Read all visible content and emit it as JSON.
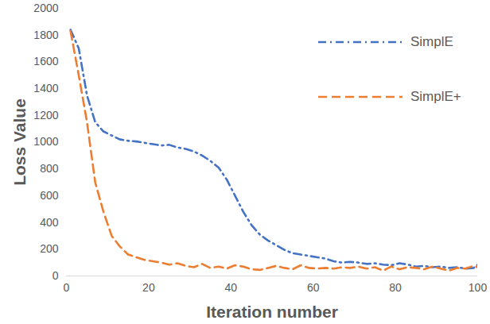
{
  "chart_data": {
    "type": "line",
    "x_label": "Iteration number",
    "y_label": "Loss Value",
    "x": [
      1,
      3,
      5,
      7,
      9,
      11,
      13,
      15,
      17,
      19,
      21,
      23,
      25,
      27,
      29,
      31,
      33,
      35,
      37,
      39,
      41,
      43,
      45,
      47,
      49,
      51,
      53,
      55,
      57,
      59,
      61,
      63,
      65,
      67,
      69,
      71,
      73,
      75,
      77,
      79,
      81,
      83,
      85,
      87,
      89,
      91,
      93,
      95,
      97,
      99,
      100
    ],
    "series": [
      {
        "name": "SimplE",
        "color": "#4472c4",
        "line_style": "dashdot",
        "marker": "none",
        "values": [
          1840,
          1700,
          1350,
          1150,
          1080,
          1050,
          1020,
          1010,
          1005,
          995,
          985,
          975,
          980,
          960,
          950,
          930,
          900,
          860,
          810,
          720,
          600,
          480,
          380,
          310,
          265,
          230,
          195,
          170,
          160,
          150,
          140,
          130,
          110,
          100,
          105,
          100,
          90,
          95,
          85,
          80,
          95,
          85,
          70,
          75,
          65,
          70,
          60,
          65,
          55,
          60,
          85
        ]
      },
      {
        "name": "SimplE+",
        "color": "#ed7d31",
        "line_style": "dashed",
        "marker": "none",
        "values": [
          1830,
          1500,
          1150,
          700,
          480,
          300,
          220,
          160,
          140,
          120,
          110,
          100,
          85,
          95,
          75,
          65,
          90,
          60,
          70,
          55,
          80,
          70,
          50,
          45,
          60,
          75,
          60,
          50,
          80,
          60,
          55,
          60,
          55,
          65,
          60,
          70,
          55,
          65,
          40,
          70,
          50,
          65,
          60,
          50,
          70,
          55,
          40,
          60,
          55,
          75,
          65
        ]
      }
    ],
    "xlim": [
      0,
      100
    ],
    "xticks": [
      0,
      20,
      40,
      60,
      80,
      100
    ],
    "ylim": [
      0,
      2000
    ],
    "yticks": [
      0,
      200,
      400,
      600,
      800,
      1000,
      1200,
      1400,
      1600,
      1800,
      2000
    ],
    "grid": false,
    "legend": "right"
  }
}
